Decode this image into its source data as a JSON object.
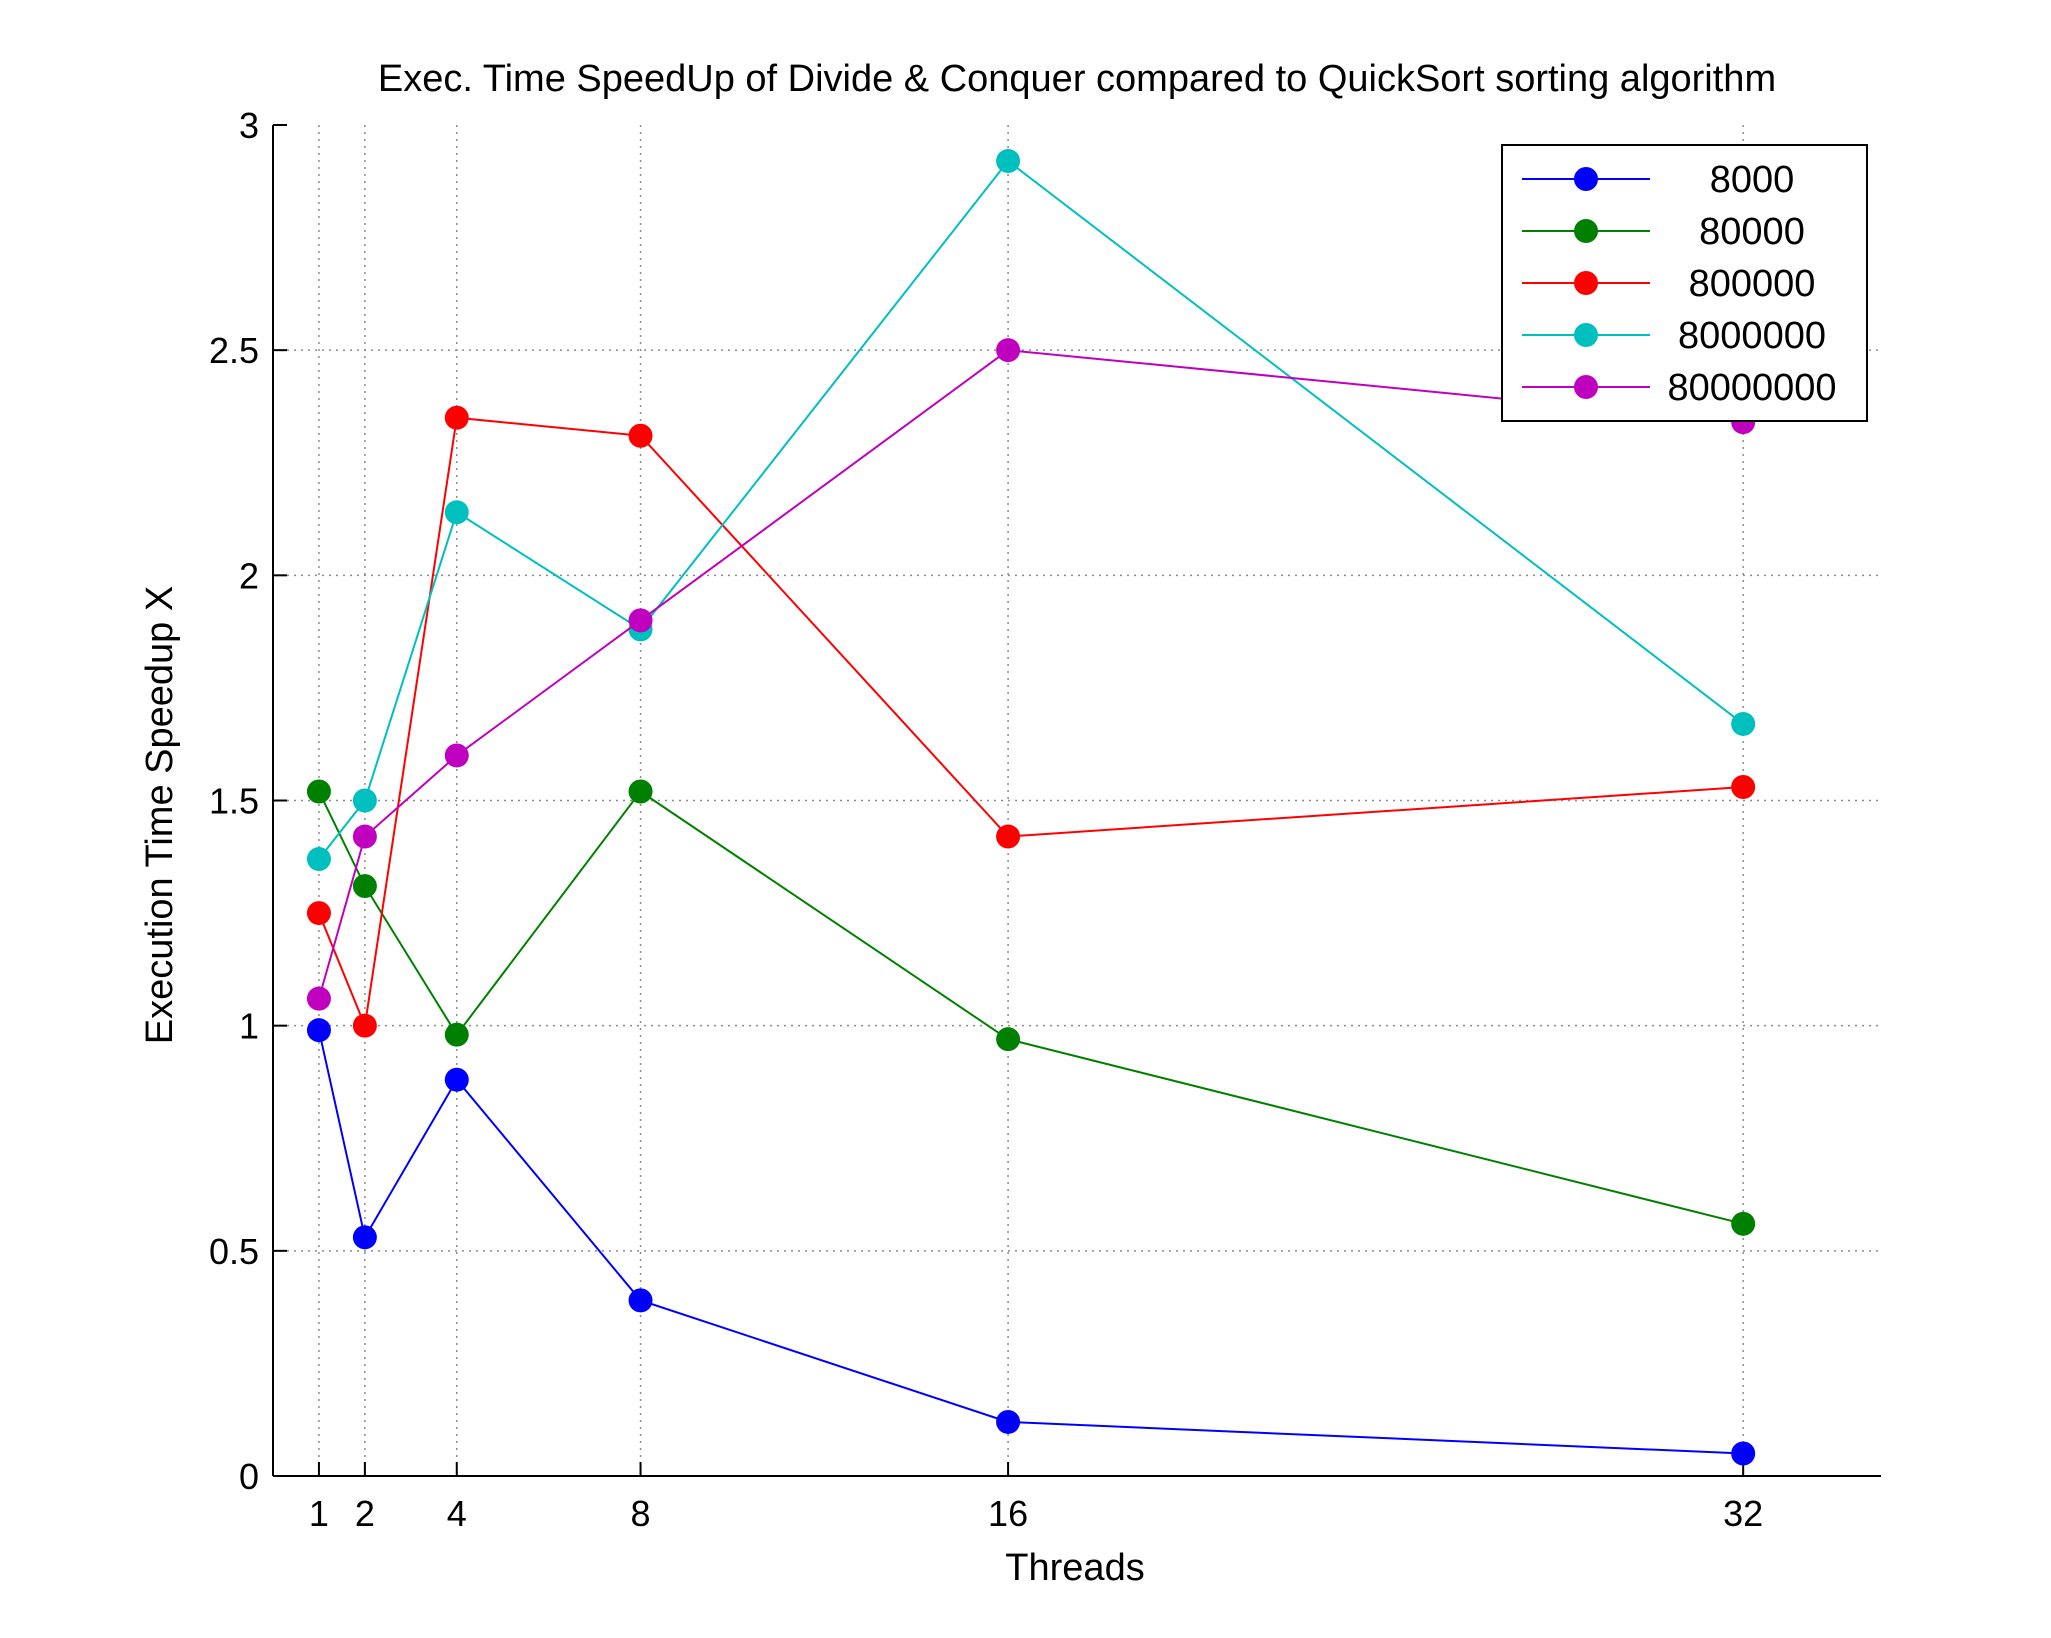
{
  "chart_data": {
    "type": "line",
    "title": "Exec. Time SpeedUp of Divide & Conquer compared to QuickSort sorting algorithm",
    "xlabel": "Threads",
    "ylabel": "Execution Time Speedup X",
    "x": [
      1,
      2,
      4,
      8,
      16,
      32
    ],
    "xticks": [
      "1",
      "2",
      "4",
      "8",
      "16",
      "32"
    ],
    "xlim": [
      0,
      35
    ],
    "yticks": [
      "0",
      "0.5",
      "1",
      "1.5",
      "2",
      "2.5",
      "3"
    ],
    "ylim": [
      0,
      3
    ],
    "grid": true,
    "legend_position": "top-right",
    "series": [
      {
        "name": "8000",
        "color": "#0000ff",
        "values": [
          0.99,
          0.53,
          0.88,
          0.39,
          0.12,
          0.05
        ]
      },
      {
        "name": "80000",
        "color": "#008000",
        "values": [
          1.52,
          1.31,
          0.98,
          1.52,
          0.97,
          0.56
        ]
      },
      {
        "name": "800000",
        "color": "#ff0000",
        "values": [
          1.25,
          1.0,
          2.35,
          2.31,
          1.42,
          1.53
        ]
      },
      {
        "name": "8000000",
        "color": "#00bfbf",
        "values": [
          1.37,
          1.5,
          2.14,
          1.88,
          2.92,
          1.67
        ]
      },
      {
        "name": "80000000",
        "color": "#bf00bf",
        "values": [
          1.06,
          1.42,
          1.6,
          1.9,
          2.5,
          2.34
        ]
      }
    ]
  }
}
